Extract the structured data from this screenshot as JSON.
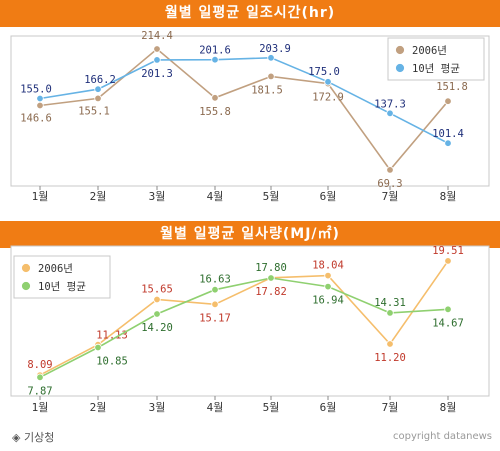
{
  "footer": {
    "source": "◈ 기상청",
    "credit": "copyright datanews"
  },
  "chart_data": [
    {
      "type": "line",
      "title": "월별 일평균 일조시간(hr)",
      "categories": [
        "1월",
        "2월",
        "3월",
        "4월",
        "5월",
        "6월",
        "7월",
        "8월"
      ],
      "ylim": [
        50,
        230
      ],
      "legend_position": "top-right",
      "series": [
        {
          "name": "2006년",
          "color": "#c1a080",
          "label_color": "#8b6a4f",
          "values": [
            146.6,
            155.1,
            214.4,
            155.8,
            181.5,
            172.9,
            69.3,
            151.8
          ]
        },
        {
          "name": "10년 평균",
          "color": "#66b3e5",
          "label_color": "#1f2f7a",
          "values": [
            155.0,
            166.2,
            201.3,
            201.6,
            203.9,
            175.0,
            137.3,
            101.4
          ]
        }
      ]
    },
    {
      "type": "line",
      "title": "월별 일평균 일사량(MJ/㎡)",
      "categories": [
        "1월",
        "2월",
        "3월",
        "4월",
        "5월",
        "6월",
        "7월",
        "8월"
      ],
      "ylim": [
        6,
        21
      ],
      "legend_position": "top-left",
      "series": [
        {
          "name": "2006년",
          "color": "#f5be6c",
          "label_color": "#c0392b",
          "values": [
            8.09,
            11.13,
            15.65,
            15.17,
            17.82,
            18.04,
            11.2,
            19.51
          ]
        },
        {
          "name": "10년 평균",
          "color": "#8fd070",
          "label_color": "#2e6e2e",
          "values": [
            7.87,
            10.85,
            14.2,
            16.63,
            17.8,
            16.94,
            14.31,
            14.67
          ]
        }
      ]
    }
  ]
}
